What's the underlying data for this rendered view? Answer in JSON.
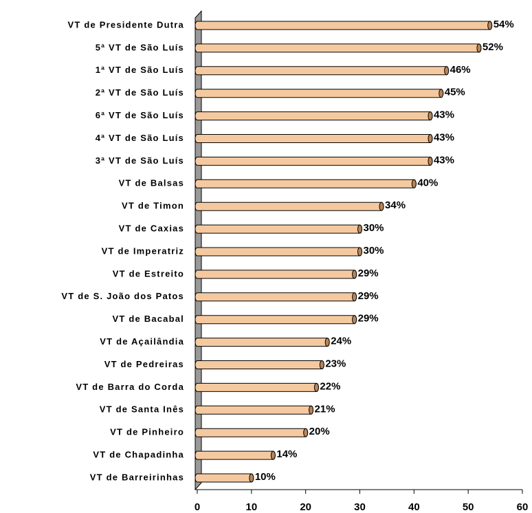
{
  "chart_data": {
    "type": "bar",
    "orientation": "horizontal",
    "categories": [
      "VT de Presidente Dutra",
      "5ª VT de São Luís",
      "1ª VT de São Luís",
      "2ª VT de São Luís",
      "6ª VT de São Luís",
      "4ª VT de São Luís",
      "3ª VT de São Luís",
      "VT de Balsas",
      "VT de Timon",
      "VT de Caxias",
      "VT de Imperatriz",
      "VT de Estreito",
      "VT de S. João dos Patos",
      "VT de Bacabal",
      "VT de Açailândia",
      "VT de Pedreiras",
      "VT de Barra do Corda",
      "VT de Santa Inês",
      "VT de Pinheiro",
      "VT de Chapadinha",
      "VT de Barreirinhas"
    ],
    "values": [
      54,
      52,
      46,
      45,
      43,
      43,
      43,
      40,
      34,
      30,
      30,
      29,
      29,
      29,
      24,
      23,
      22,
      21,
      20,
      14,
      10
    ],
    "value_labels": [
      "54%",
      "52%",
      "46%",
      "45%",
      "43%",
      "43%",
      "43%",
      "40%",
      "34%",
      "30%",
      "30%",
      "29%",
      "29%",
      "29%",
      "24%",
      "23%",
      "22%",
      "21%",
      "20%",
      "14%",
      "10%"
    ],
    "color": "#f5c9a0",
    "xlim": [
      0,
      60
    ],
    "xticks": [
      0,
      10,
      20,
      30,
      40,
      50,
      60
    ]
  }
}
